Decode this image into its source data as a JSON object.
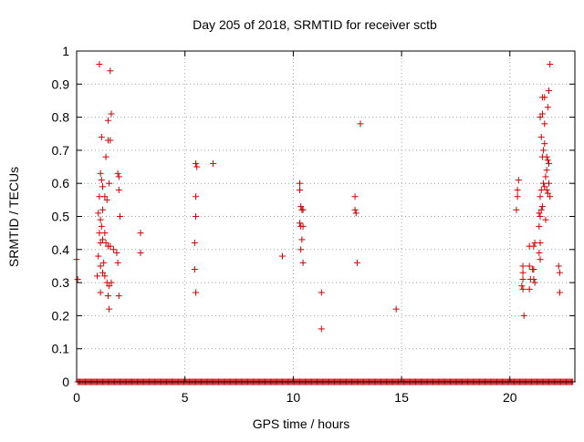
{
  "chart_data": {
    "type": "scatter",
    "title": "Day 205 of 2018, SRMTID for receiver sctb",
    "xlabel": "GPS time / hours",
    "ylabel": "SRMTID / TECUs",
    "xlim": [
      0,
      23
    ],
    "ylim": [
      0,
      1
    ],
    "xticks": [
      0,
      5,
      10,
      15,
      20
    ],
    "yticks": [
      0,
      0.1,
      0.2,
      0.3,
      0.4,
      0.5,
      0.6,
      0.7,
      0.8,
      0.9,
      1
    ],
    "grid": true,
    "marker": "+",
    "marker_color": "#d40000",
    "zero_baseline": {
      "x_start": 0.05,
      "x_end": 22.9,
      "step": 0.05,
      "y": 0
    },
    "series": [
      {
        "name": "SRMTID",
        "points": [
          [
            0.0,
            0.37
          ],
          [
            0.05,
            0.31
          ],
          [
            1.05,
            0.96
          ],
          [
            1.55,
            0.94
          ],
          [
            1.6,
            0.81
          ],
          [
            1.45,
            0.79
          ],
          [
            1.45,
            0.73
          ],
          [
            1.55,
            0.73
          ],
          [
            1.15,
            0.74
          ],
          [
            1.35,
            0.68
          ],
          [
            1.1,
            0.63
          ],
          [
            1.15,
            0.61
          ],
          [
            1.2,
            0.59
          ],
          [
            1.5,
            0.6
          ],
          [
            1.3,
            0.56
          ],
          [
            1.4,
            0.55
          ],
          [
            1.05,
            0.56
          ],
          [
            1.2,
            0.52
          ],
          [
            1.0,
            0.51
          ],
          [
            1.1,
            0.49
          ],
          [
            1.15,
            0.47
          ],
          [
            1.05,
            0.45
          ],
          [
            1.3,
            0.45
          ],
          [
            1.2,
            0.43
          ],
          [
            1.1,
            0.42
          ],
          [
            1.35,
            0.42
          ],
          [
            1.45,
            0.41
          ],
          [
            1.55,
            0.41
          ],
          [
            1.0,
            0.38
          ],
          [
            1.25,
            0.36
          ],
          [
            1.1,
            0.35
          ],
          [
            1.2,
            0.33
          ],
          [
            1.3,
            0.32
          ],
          [
            0.95,
            0.32
          ],
          [
            1.4,
            0.3
          ],
          [
            1.5,
            0.29
          ],
          [
            1.6,
            0.3
          ],
          [
            1.1,
            0.27
          ],
          [
            1.45,
            0.26
          ],
          [
            1.5,
            0.22
          ],
          [
            1.9,
            0.63
          ],
          [
            1.95,
            0.62
          ],
          [
            1.95,
            0.58
          ],
          [
            2.0,
            0.5
          ],
          [
            1.85,
            0.39
          ],
          [
            1.9,
            0.36
          ],
          [
            1.95,
            0.26
          ],
          [
            1.7,
            0.4
          ],
          [
            2.95,
            0.45
          ],
          [
            2.95,
            0.39
          ],
          [
            5.5,
            0.66
          ],
          [
            5.55,
            0.65
          ],
          [
            5.5,
            0.56
          ],
          [
            5.5,
            0.5
          ],
          [
            5.45,
            0.42
          ],
          [
            5.45,
            0.34
          ],
          [
            5.5,
            0.27
          ],
          [
            6.3,
            0.66
          ],
          [
            9.5,
            0.38
          ],
          [
            10.3,
            0.6
          ],
          [
            10.3,
            0.58
          ],
          [
            10.35,
            0.53
          ],
          [
            10.4,
            0.52
          ],
          [
            10.45,
            0.52
          ],
          [
            10.3,
            0.48
          ],
          [
            10.35,
            0.47
          ],
          [
            10.45,
            0.47
          ],
          [
            10.4,
            0.43
          ],
          [
            10.35,
            0.4
          ],
          [
            10.45,
            0.36
          ],
          [
            11.3,
            0.27
          ],
          [
            11.3,
            0.16
          ],
          [
            12.85,
            0.56
          ],
          [
            12.85,
            0.52
          ],
          [
            12.9,
            0.51
          ],
          [
            12.95,
            0.36
          ],
          [
            13.1,
            0.78
          ],
          [
            14.75,
            0.22
          ],
          [
            20.4,
            0.61
          ],
          [
            20.35,
            0.58
          ],
          [
            20.35,
            0.56
          ],
          [
            20.3,
            0.52
          ],
          [
            20.6,
            0.35
          ],
          [
            20.6,
            0.33
          ],
          [
            20.6,
            0.31
          ],
          [
            20.55,
            0.29
          ],
          [
            20.6,
            0.28
          ],
          [
            20.65,
            0.2
          ],
          [
            20.9,
            0.35
          ],
          [
            20.95,
            0.31
          ],
          [
            20.9,
            0.28
          ],
          [
            20.9,
            0.41
          ],
          [
            21.05,
            0.34
          ],
          [
            21.1,
            0.41
          ],
          [
            21.15,
            0.42
          ],
          [
            21.1,
            0.31
          ],
          [
            21.15,
            0.3
          ],
          [
            21.1,
            0.34
          ],
          [
            21.85,
            0.96
          ],
          [
            21.8,
            0.88
          ],
          [
            21.5,
            0.86
          ],
          [
            21.6,
            0.86
          ],
          [
            21.75,
            0.83
          ],
          [
            21.4,
            0.8
          ],
          [
            21.5,
            0.81
          ],
          [
            21.6,
            0.78
          ],
          [
            21.45,
            0.74
          ],
          [
            21.6,
            0.72
          ],
          [
            21.55,
            0.7
          ],
          [
            21.5,
            0.68
          ],
          [
            21.7,
            0.68
          ],
          [
            21.75,
            0.67
          ],
          [
            21.8,
            0.66
          ],
          [
            21.7,
            0.64
          ],
          [
            21.65,
            0.62
          ],
          [
            21.55,
            0.6
          ],
          [
            21.6,
            0.59
          ],
          [
            21.8,
            0.6
          ],
          [
            21.45,
            0.58
          ],
          [
            21.7,
            0.58
          ],
          [
            21.75,
            0.57
          ],
          [
            21.85,
            0.56
          ],
          [
            21.4,
            0.56
          ],
          [
            21.45,
            0.52
          ],
          [
            21.35,
            0.51
          ],
          [
            21.4,
            0.5
          ],
          [
            21.5,
            0.53
          ],
          [
            21.65,
            0.49
          ],
          [
            21.35,
            0.47
          ],
          [
            21.4,
            0.42
          ],
          [
            21.35,
            0.39
          ],
          [
            21.4,
            0.37
          ],
          [
            22.25,
            0.35
          ],
          [
            22.3,
            0.33
          ],
          [
            22.3,
            0.27
          ]
        ]
      }
    ]
  }
}
